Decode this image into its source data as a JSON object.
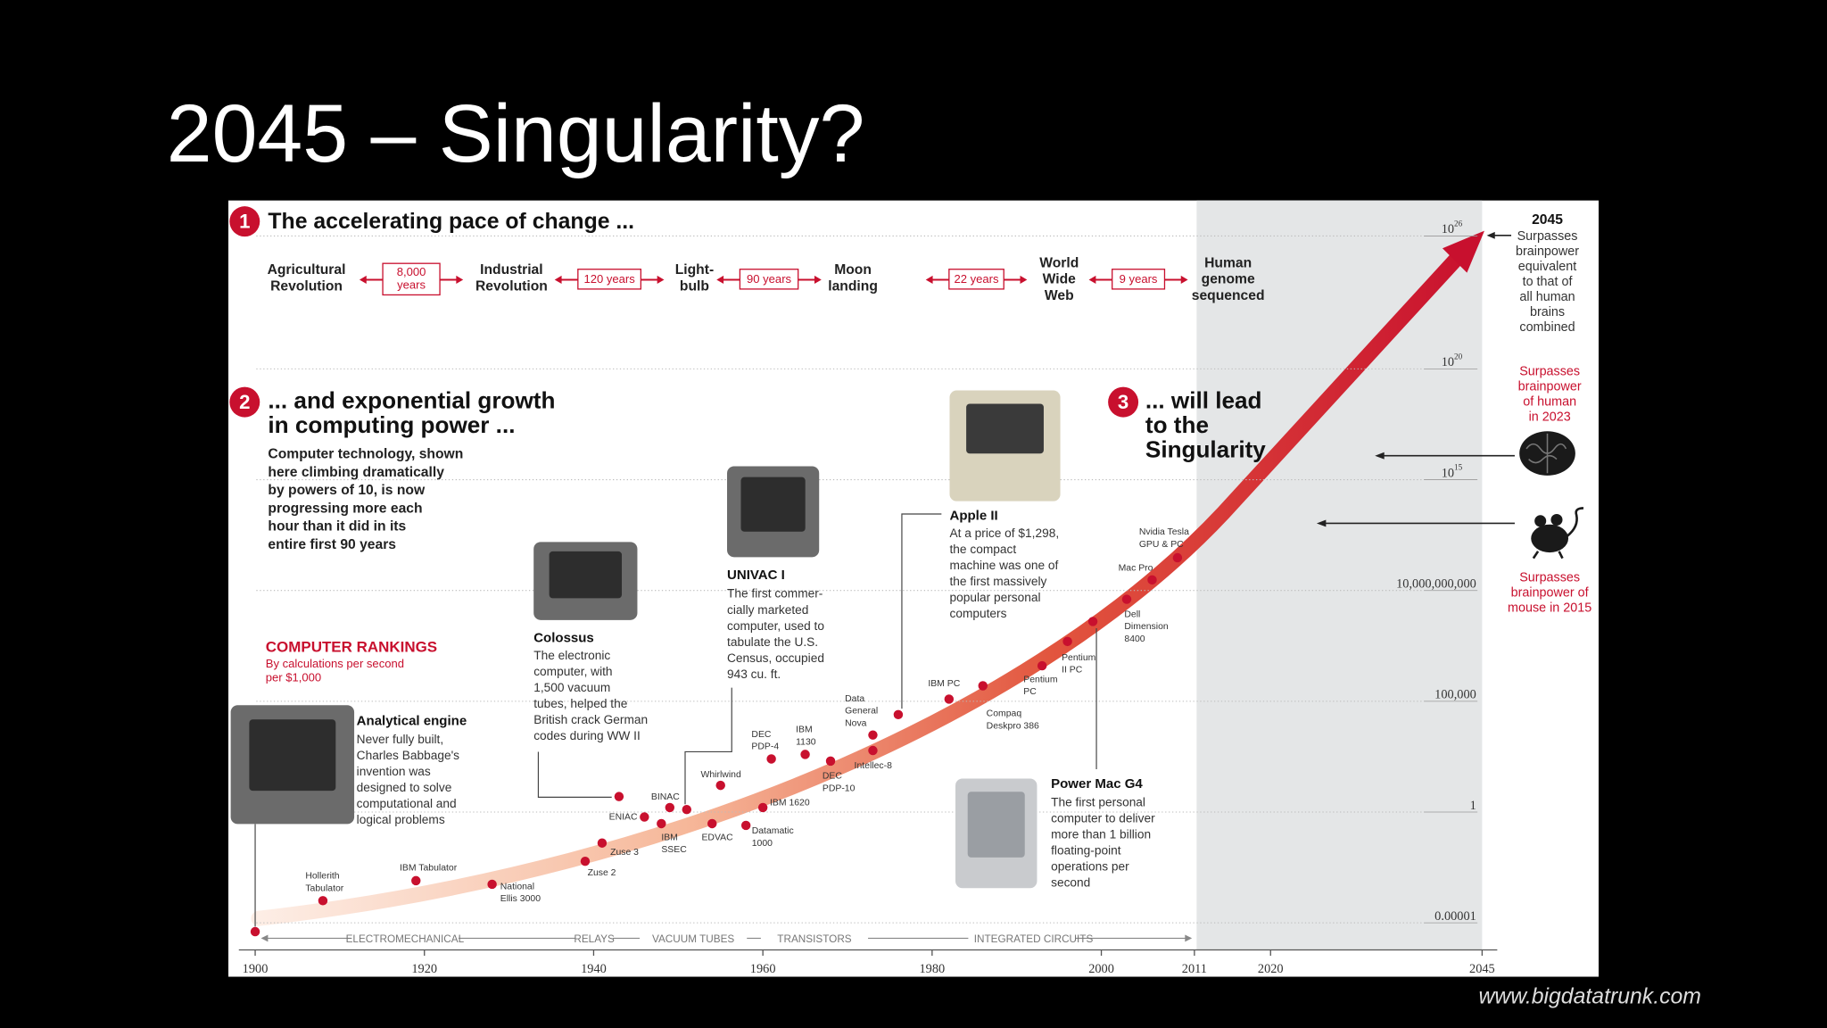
{
  "slide": {
    "title": "2045 – Singularity?",
    "footer": "www.bigdatatrunk.com"
  },
  "infographic": {
    "section_1": {
      "number": "1",
      "heading": "The accelerating pace of change ..."
    },
    "milestones": [
      [
        "Agricultural",
        "Revolution"
      ],
      [
        "Industrial",
        "Revolution"
      ],
      [
        "Light-",
        "bulb"
      ],
      [
        "Moon",
        "landing"
      ],
      [
        "World",
        "Wide",
        "Web"
      ],
      [
        "Human",
        "genome",
        "sequenced"
      ]
    ],
    "intervals": [
      [
        "8,000",
        "years"
      ],
      [
        "120 years"
      ],
      [
        "90 years"
      ],
      [
        "22 years"
      ],
      [
        "9 years"
      ]
    ],
    "section_2": {
      "number": "2",
      "heading": [
        "... and exponential growth",
        "in computing power ..."
      ],
      "text": [
        "Computer technology, shown",
        "here climbing dramatically",
        "by powers of 10, is now",
        "progressing more each",
        "hour than it did in its",
        "entire first 90 years"
      ]
    },
    "section_3": {
      "number": "3",
      "heading": [
        "... will lead",
        "to the",
        "Singularity"
      ]
    },
    "rankings": {
      "title": "COMPUTER RANKINGS",
      "subtitle": [
        "By calculations per second",
        "per $1,000"
      ]
    },
    "callouts": [
      {
        "title": "Analytical engine",
        "text": [
          "Never fully built,",
          "Charles Babbage's",
          "invention was",
          "designed to solve",
          "computational and",
          "logical problems"
        ]
      },
      {
        "title": "Colossus",
        "text": [
          "The electronic",
          "computer, with",
          "1,500 vacuum",
          "tubes, helped the",
          "British crack German",
          "codes during WW II"
        ]
      },
      {
        "title": "UNIVAC I",
        "text": [
          "The first commer-",
          "cially marketed",
          "computer, used to",
          "tabulate the U.S.",
          "Census, occupied",
          "943 cu. ft."
        ]
      },
      {
        "title": "Apple II",
        "text": [
          "At a price of $1,298,",
          "the compact",
          "machine was one of",
          "the first massively",
          "popular personal",
          "computers"
        ]
      },
      {
        "title": "Power Mac G4",
        "text": [
          "The first personal",
          "computer to deliver",
          "more than 1 billion",
          "floating-point",
          "operations per",
          "second"
        ]
      }
    ],
    "eras": [
      "ELECTROMECHANICAL",
      "RELAYS",
      "VACUUM TUBES",
      "TRANSISTORS",
      "INTEGRATED CIRCUITS"
    ],
    "milestone_2045": {
      "year": "2045",
      "text": [
        "Surpasses",
        "brainpower",
        "equivalent",
        "to that of",
        "all human",
        "brains",
        "combined"
      ]
    },
    "human": [
      "Surpasses",
      "brainpower",
      "of human",
      "in 2023"
    ],
    "mouse": [
      "Surpasses",
      "brainpower of",
      "mouse in 2015"
    ]
  },
  "chart_data": {
    "type": "scatter",
    "log_scale": true,
    "color": "#c8102e",
    "x": [
      1900,
      1908,
      1919,
      1928,
      1939,
      1941,
      1946,
      1948,
      1949,
      1943,
      1951,
      1954,
      1955,
      1958,
      1960,
      1961,
      1965,
      1968,
      1973,
      1973,
      1976,
      1982,
      1986,
      1993,
      1996,
      1999,
      2003,
      2006,
      2009
    ],
    "values": [
      4e-06,
      0.0001,
      0.0008,
      0.00055,
      0.006,
      0.04,
      0.6,
      0.3,
      1.6,
      5,
      1.3,
      0.3,
      16,
      0.25,
      1.6,
      250,
      400,
      200,
      600,
      3000,
      25000,
      125000,
      500000,
      4000000,
      50000000,
      400000000,
      4000000000,
      30000000000,
      300000000000
    ],
    "labels": [
      null,
      [
        "Hollerith",
        "Tabulator"
      ],
      [
        "IBM Tabulator"
      ],
      [
        "National",
        "Ellis 3000"
      ],
      [
        "Zuse 2"
      ],
      [
        "Zuse 3"
      ],
      [
        "ENIAC"
      ],
      [
        "IBM",
        "SSEC"
      ],
      [
        "BINAC"
      ],
      null,
      null,
      [
        "EDVAC"
      ],
      [
        "Whirlwind"
      ],
      [
        "Datamatic",
        "1000"
      ],
      [
        "IBM 1620"
      ],
      [
        "DEC",
        "PDP-4"
      ],
      [
        "IBM",
        "1130"
      ],
      [
        "DEC",
        "PDP-10"
      ],
      [
        "Intellec-8"
      ],
      [
        "Data",
        "General",
        "Nova"
      ],
      null,
      [
        "IBM PC"
      ],
      [
        "Compaq",
        "Deskpro 386"
      ],
      [
        "Pentium",
        "PC"
      ],
      [
        "Pentium",
        "II PC"
      ],
      null,
      [
        "Dell",
        "Dimension",
        "8400"
      ],
      [
        "Mac Pro"
      ],
      [
        "Nvidia Tesla",
        "GPU & PC"
      ]
    ],
    "xlim": [
      1900,
      2045
    ],
    "xticks": [
      1900,
      1920,
      1940,
      1960,
      1980,
      2000,
      2011,
      2020,
      2045
    ],
    "ylim": [
      6e-07,
      4e+27
    ],
    "yticks": [
      1e-05,
      1,
      {
        "value": 100000,
        "label": "100,000"
      },
      {
        "value": 10000000000,
        "label": "10,000,000,000"
      },
      {
        "value": 1000000000000000.0,
        "label": "10",
        "exponent": "15"
      },
      {
        "value": 1e+20,
        "label": "10",
        "exponent": "20"
      },
      {
        "value": 1e+26,
        "label": "10",
        "exponent": "26"
      }
    ]
  }
}
